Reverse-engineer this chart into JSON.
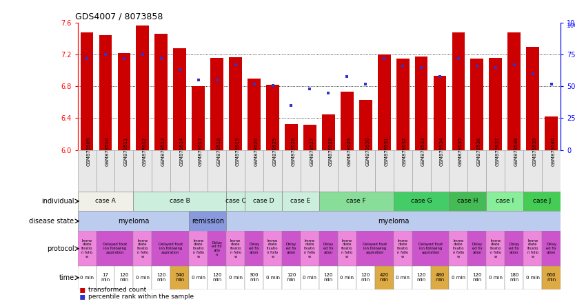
{
  "title": "GDS4007 / 8073858",
  "samples": [
    "GSM879509",
    "GSM879510",
    "GSM879511",
    "GSM879512",
    "GSM879513",
    "GSM879514",
    "GSM879517",
    "GSM879518",
    "GSM879519",
    "GSM879520",
    "GSM879525",
    "GSM879526",
    "GSM879527",
    "GSM879528",
    "GSM879529",
    "GSM879530",
    "GSM879531",
    "GSM879532",
    "GSM879533",
    "GSM879534",
    "GSM879535",
    "GSM879536",
    "GSM879537",
    "GSM879538",
    "GSM879539",
    "GSM879540"
  ],
  "bar_heights": [
    7.48,
    7.45,
    7.22,
    7.57,
    7.46,
    7.28,
    6.8,
    7.16,
    7.17,
    6.9,
    6.82,
    6.33,
    6.32,
    6.45,
    6.73,
    6.63,
    7.2,
    7.15,
    7.18,
    6.93,
    7.48,
    7.15,
    7.16,
    7.48,
    7.3,
    6.42
  ],
  "blue_values": [
    72,
    75,
    72,
    75,
    72,
    63,
    55,
    55,
    67,
    52,
    51,
    35,
    48,
    45,
    58,
    52,
    72,
    66,
    65,
    58,
    72,
    66,
    65,
    67,
    60,
    52
  ],
  "ylim_left": [
    6.0,
    7.6
  ],
  "ylim_right": [
    0,
    100
  ],
  "yticks_left": [
    6.0,
    6.4,
    6.8,
    7.2,
    7.6
  ],
  "yticks_right": [
    0,
    25,
    50,
    75,
    100
  ],
  "bar_color": "#cc0000",
  "blue_color": "#3333cc",
  "individual_row": {
    "cases": [
      {
        "name": "case A",
        "start": 0,
        "end": 3,
        "color": "#f0f0e8"
      },
      {
        "name": "case B",
        "start": 3,
        "end": 8,
        "color": "#cceedd"
      },
      {
        "name": "case C",
        "start": 8,
        "end": 9,
        "color": "#cceedd"
      },
      {
        "name": "case D",
        "start": 9,
        "end": 11,
        "color": "#cceedd"
      },
      {
        "name": "case E",
        "start": 11,
        "end": 13,
        "color": "#cceedd"
      },
      {
        "name": "case F",
        "start": 13,
        "end": 17,
        "color": "#88dd99"
      },
      {
        "name": "case G",
        "start": 17,
        "end": 20,
        "color": "#44cc66"
      },
      {
        "name": "case H",
        "start": 20,
        "end": 22,
        "color": "#44bb55"
      },
      {
        "name": "case I",
        "start": 22,
        "end": 24,
        "color": "#88ee99"
      },
      {
        "name": "case J",
        "start": 24,
        "end": 26,
        "color": "#44cc55"
      }
    ]
  },
  "disease_state_row": {
    "states": [
      {
        "name": "myeloma",
        "start": 0,
        "end": 6,
        "color": "#bbccee"
      },
      {
        "name": "remission",
        "start": 6,
        "end": 8,
        "color": "#8899dd"
      },
      {
        "name": "myeloma",
        "start": 8,
        "end": 26,
        "color": "#bbccee"
      }
    ]
  },
  "protocol_row": {
    "protocols": [
      {
        "name": "Imme\ndiate\nfixatio\nn follo\nw",
        "start": 0,
        "end": 1,
        "color": "#ee88dd"
      },
      {
        "name": "Delayed fixat\nion following\naspiration",
        "start": 1,
        "end": 3,
        "color": "#cc55cc"
      },
      {
        "name": "Imme\ndiate\nfixatio\nn follo\nw",
        "start": 3,
        "end": 4,
        "color": "#ee88dd"
      },
      {
        "name": "Delayed fixat\nion following\naspiration",
        "start": 4,
        "end": 6,
        "color": "#cc55cc"
      },
      {
        "name": "Imme\ndiate\nfixatio\nn follo\nw",
        "start": 6,
        "end": 7,
        "color": "#ee88dd"
      },
      {
        "name": "Delay\ned fix\natio\nn",
        "start": 7,
        "end": 8,
        "color": "#cc55cc"
      },
      {
        "name": "Imme\ndiate\nfixatio\nn follo\nw",
        "start": 8,
        "end": 9,
        "color": "#ee88dd"
      },
      {
        "name": "Delay\ned fix\nation",
        "start": 9,
        "end": 10,
        "color": "#cc55cc"
      },
      {
        "name": "Imme\ndiate\nfixatio\nn follo\nw",
        "start": 10,
        "end": 11,
        "color": "#ee88dd"
      },
      {
        "name": "Delay\ned fix\nation",
        "start": 11,
        "end": 12,
        "color": "#cc55cc"
      },
      {
        "name": "Imme\ndiate\nfixatio\nn follo\nw",
        "start": 12,
        "end": 13,
        "color": "#ee88dd"
      },
      {
        "name": "Delay\ned fix\nation",
        "start": 13,
        "end": 14,
        "color": "#cc55cc"
      },
      {
        "name": "Imme\ndiate\nfixatio\nn follo\nw",
        "start": 14,
        "end": 15,
        "color": "#ee88dd"
      },
      {
        "name": "Delayed fixat\nion following\naspiration",
        "start": 15,
        "end": 17,
        "color": "#cc55cc"
      },
      {
        "name": "Imme\ndiate\nfixatio\nn follo\nw",
        "start": 17,
        "end": 18,
        "color": "#ee88dd"
      },
      {
        "name": "Delayed fixat\nion following\naspiration",
        "start": 18,
        "end": 20,
        "color": "#cc55cc"
      },
      {
        "name": "Imme\ndiate\nfixatio\nn follo\nw",
        "start": 20,
        "end": 21,
        "color": "#ee88dd"
      },
      {
        "name": "Delay\ned fix\nation",
        "start": 21,
        "end": 22,
        "color": "#cc55cc"
      },
      {
        "name": "Imme\ndiate\nfixatio\nn follo\nw",
        "start": 22,
        "end": 23,
        "color": "#ee88dd"
      },
      {
        "name": "Delay\ned fix\nation",
        "start": 23,
        "end": 24,
        "color": "#cc55cc"
      },
      {
        "name": "Imme\ndiate\nfixatio\nn follo\nw",
        "start": 24,
        "end": 25,
        "color": "#ee88dd"
      },
      {
        "name": "Delay\ned fix\nation",
        "start": 25,
        "end": 26,
        "color": "#cc55cc"
      }
    ]
  },
  "time_row": {
    "times": [
      {
        "name": "0 min",
        "start": 0,
        "end": 1,
        "color": "#ffffff"
      },
      {
        "name": "17\nmin",
        "start": 1,
        "end": 2,
        "color": "#ffffff"
      },
      {
        "name": "120\nmin",
        "start": 2,
        "end": 3,
        "color": "#ffffff"
      },
      {
        "name": "0 min",
        "start": 3,
        "end": 4,
        "color": "#ffffff"
      },
      {
        "name": "120\nmin",
        "start": 4,
        "end": 5,
        "color": "#ffffff"
      },
      {
        "name": "540\nmin",
        "start": 5,
        "end": 6,
        "color": "#ddaa44"
      },
      {
        "name": "0 min",
        "start": 6,
        "end": 7,
        "color": "#ffffff"
      },
      {
        "name": "120\nmin",
        "start": 7,
        "end": 8,
        "color": "#ffffff"
      },
      {
        "name": "0 min",
        "start": 8,
        "end": 9,
        "color": "#ffffff"
      },
      {
        "name": "300\nmin",
        "start": 9,
        "end": 10,
        "color": "#ffffff"
      },
      {
        "name": "0 min",
        "start": 10,
        "end": 11,
        "color": "#ffffff"
      },
      {
        "name": "120\nmin",
        "start": 11,
        "end": 12,
        "color": "#ffffff"
      },
      {
        "name": "0 min",
        "start": 12,
        "end": 13,
        "color": "#ffffff"
      },
      {
        "name": "120\nmin",
        "start": 13,
        "end": 14,
        "color": "#ffffff"
      },
      {
        "name": "0 min",
        "start": 14,
        "end": 15,
        "color": "#ffffff"
      },
      {
        "name": "120\nmin",
        "start": 15,
        "end": 16,
        "color": "#ffffff"
      },
      {
        "name": "420\nmin",
        "start": 16,
        "end": 17,
        "color": "#ddaa44"
      },
      {
        "name": "0 min",
        "start": 17,
        "end": 18,
        "color": "#ffffff"
      },
      {
        "name": "120\nmin",
        "start": 18,
        "end": 19,
        "color": "#ffffff"
      },
      {
        "name": "480\nmin",
        "start": 19,
        "end": 20,
        "color": "#ddaa44"
      },
      {
        "name": "0 min",
        "start": 20,
        "end": 21,
        "color": "#ffffff"
      },
      {
        "name": "120\nmin",
        "start": 21,
        "end": 22,
        "color": "#ffffff"
      },
      {
        "name": "0 min",
        "start": 22,
        "end": 23,
        "color": "#ffffff"
      },
      {
        "name": "180\nmin",
        "start": 23,
        "end": 24,
        "color": "#ffffff"
      },
      {
        "name": "0 min",
        "start": 24,
        "end": 25,
        "color": "#ffffff"
      },
      {
        "name": "660\nmin",
        "start": 25,
        "end": 26,
        "color": "#ddaa44"
      }
    ]
  },
  "row_labels": [
    "individual",
    "disease state",
    "protocol",
    "time"
  ],
  "legend_items": [
    {
      "color": "#cc0000",
      "label": "transformed count"
    },
    {
      "color": "#3333cc",
      "label": "percentile rank within the sample"
    }
  ]
}
